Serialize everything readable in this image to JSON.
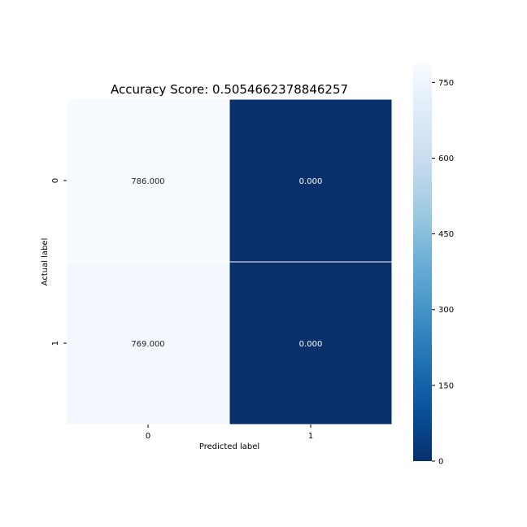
{
  "chart_data": {
    "type": "heatmap",
    "title": "Accuracy Score: 0.5054662378846257",
    "xlabel": "Predicted label",
    "ylabel": "Actual label",
    "x_tick_labels": [
      "0",
      "1"
    ],
    "y_tick_labels": [
      "0",
      "1"
    ],
    "values": [
      [
        786,
        0
      ],
      [
        769,
        0
      ]
    ],
    "cell_labels": [
      [
        "786.000",
        "0.000"
      ],
      [
        "769.000",
        "0.000"
      ]
    ],
    "colormap": "Blues_r",
    "color_low": "#08306b",
    "color_high": "#f7fbff",
    "vmin": 0,
    "vmax": 786,
    "colorbar": {
      "ticks": [
        0,
        150,
        300,
        450,
        600,
        750
      ],
      "tick_labels": [
        "0",
        "150",
        "300",
        "450",
        "600",
        "750"
      ]
    },
    "cell_text_color_light_bg": "#262626",
    "cell_text_color_dark_bg": "#ffffff",
    "gridline_color": "#ffffff"
  }
}
